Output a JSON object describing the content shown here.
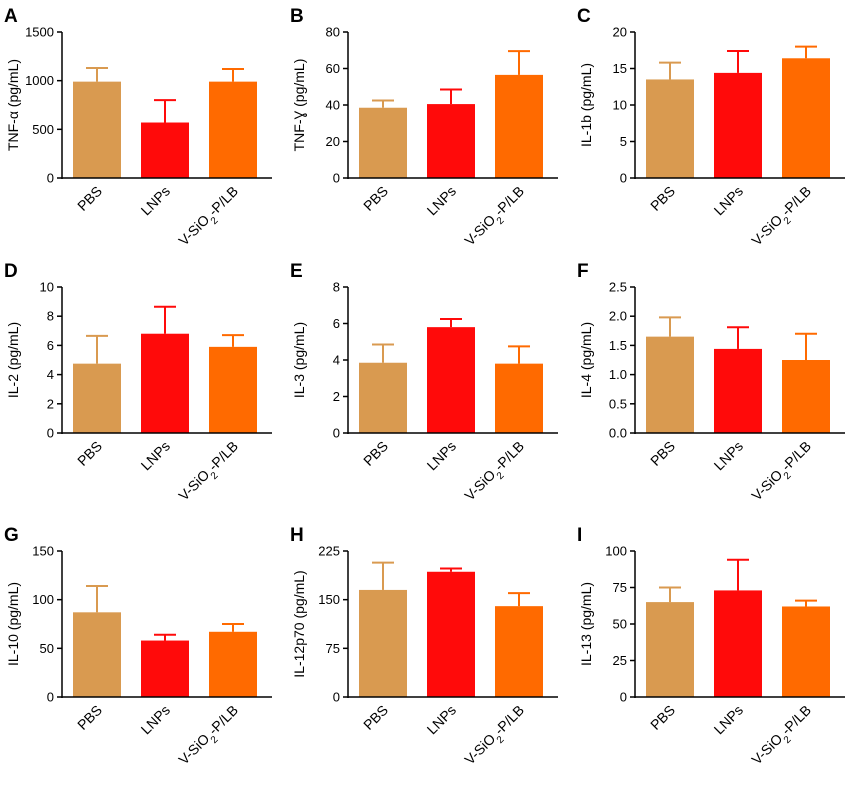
{
  "figure": {
    "colors": {
      "PBS": "#D99A50",
      "LNPs": "#FF0A0A",
      "V-SiO2-P/LB": "#FF6A00",
      "axis": "#000000"
    }
  },
  "chart_data": [
    {
      "panel": "A",
      "type": "bar",
      "ylabel": "TNF-α (pg/mL)",
      "categories": [
        "PBS",
        "LNPs",
        "V-SiO2-P/LB"
      ],
      "values": [
        990,
        570,
        990
      ],
      "errors": [
        140,
        230,
        130
      ],
      "ylim": [
        0,
        1500
      ],
      "yticks": [
        0,
        500,
        1000,
        1500
      ],
      "tick_labels": [
        "0",
        "500",
        "1000",
        "1500"
      ]
    },
    {
      "panel": "B",
      "type": "bar",
      "ylabel": "TNF-Ɣ (pg/mL)",
      "categories": [
        "PBS",
        "LNPs",
        "V-SiO2-P/LB"
      ],
      "values": [
        38.5,
        40.5,
        56.5
      ],
      "errors": [
        4,
        8,
        13
      ],
      "ylim": [
        0,
        80
      ],
      "yticks": [
        0,
        20,
        40,
        60,
        80
      ],
      "tick_labels": [
        "0",
        "20",
        "40",
        "60",
        "80"
      ]
    },
    {
      "panel": "C",
      "type": "bar",
      "ylabel": "IL-1b (pg/mL)",
      "categories": [
        "PBS",
        "LNPs",
        "V-SiO2-P/LB"
      ],
      "values": [
        13.5,
        14.4,
        16.4
      ],
      "errors": [
        2.3,
        3.0,
        1.6
      ],
      "ylim": [
        0,
        20
      ],
      "yticks": [
        0,
        5,
        10,
        15,
        20
      ],
      "tick_labels": [
        "0",
        "5",
        "10",
        "15",
        "20"
      ]
    },
    {
      "panel": "D",
      "type": "bar",
      "ylabel": "IL-2 (pg/mL)",
      "categories": [
        "PBS",
        "LNPs",
        "V-SiO2-P/LB"
      ],
      "values": [
        4.75,
        6.8,
        5.9
      ],
      "errors": [
        1.9,
        1.85,
        0.8
      ],
      "ylim": [
        0,
        10
      ],
      "yticks": [
        0,
        2,
        4,
        6,
        8,
        10
      ],
      "tick_labels": [
        "0",
        "2",
        "4",
        "6",
        "8",
        "10"
      ]
    },
    {
      "panel": "E",
      "type": "bar",
      "ylabel": "IL-3 (pg/mL)",
      "categories": [
        "PBS",
        "LNPs",
        "V-SiO2-P/LB"
      ],
      "values": [
        3.85,
        5.8,
        3.8
      ],
      "errors": [
        1.0,
        0.45,
        0.95
      ],
      "ylim": [
        0,
        8
      ],
      "yticks": [
        0,
        2,
        4,
        6,
        8
      ],
      "tick_labels": [
        "0",
        "2",
        "4",
        "6",
        "8"
      ]
    },
    {
      "panel": "F",
      "type": "bar",
      "ylabel": "IL-4 (pg/mL)",
      "categories": [
        "PBS",
        "LNPs",
        "V-SiO2-P/LB"
      ],
      "values": [
        1.65,
        1.44,
        1.25
      ],
      "errors": [
        0.33,
        0.37,
        0.45
      ],
      "ylim": [
        0,
        2.5
      ],
      "yticks": [
        0,
        0.5,
        1,
        1.5,
        2,
        2.5
      ],
      "tick_labels": [
        "0.0",
        "0.5",
        "1.0",
        "1.5",
        "2.0",
        "2.5"
      ]
    },
    {
      "panel": "G",
      "type": "bar",
      "ylabel": "IL-10 (pg/mL)",
      "categories": [
        "PBS",
        "LNPs",
        "V-SiO2-P/LB"
      ],
      "values": [
        87,
        58,
        67
      ],
      "errors": [
        27,
        6,
        8
      ],
      "ylim": [
        0,
        150
      ],
      "yticks": [
        0,
        50,
        100,
        150
      ],
      "tick_labels": [
        "0",
        "50",
        "100",
        "150"
      ]
    },
    {
      "panel": "H",
      "type": "bar",
      "ylabel": "IL-12p70 (pg/mL)",
      "categories": [
        "PBS",
        "LNPs",
        "V-SiO2-P/LB"
      ],
      "values": [
        165,
        193,
        140
      ],
      "errors": [
        42,
        5,
        20
      ],
      "ylim": [
        0,
        225
      ],
      "yticks": [
        0,
        75,
        150,
        225
      ],
      "tick_labels": [
        "0",
        "75",
        "150",
        "225"
      ]
    },
    {
      "panel": "I",
      "type": "bar",
      "ylabel": "IL-13 (pg/mL)",
      "categories": [
        "PBS",
        "LNPs",
        "V-SiO2-P/LB"
      ],
      "values": [
        65,
        73,
        62
      ],
      "errors": [
        10,
        21,
        4
      ],
      "ylim": [
        0,
        100
      ],
      "yticks": [
        0,
        25,
        50,
        75,
        100
      ],
      "tick_labels": [
        "0",
        "25",
        "50",
        "75",
        "100"
      ]
    }
  ]
}
